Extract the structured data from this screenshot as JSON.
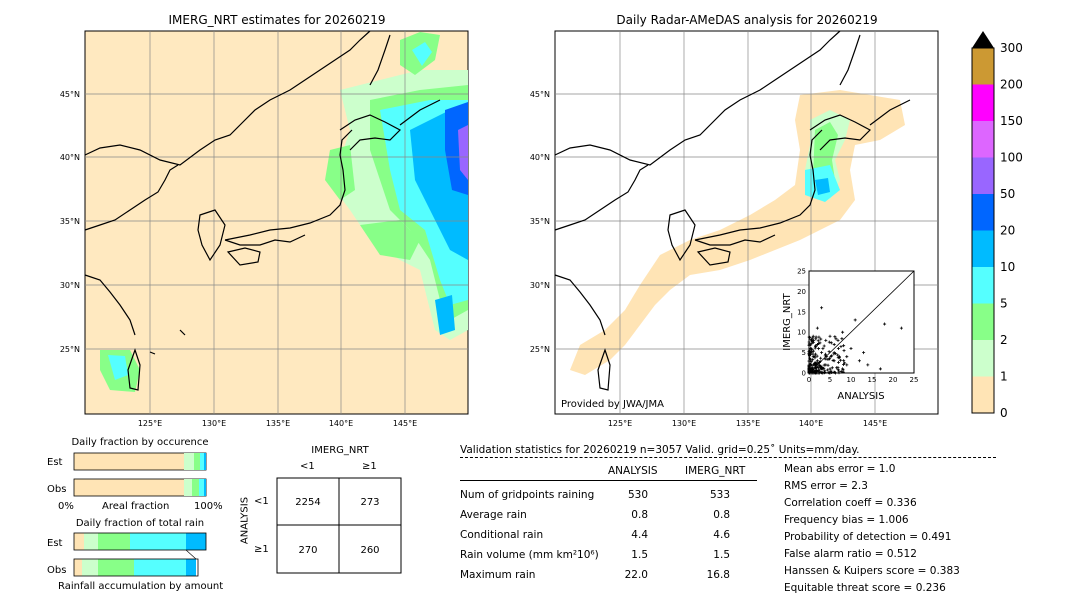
{
  "left_map": {
    "title": "IMERG_NRT estimates for 20260219",
    "lat_ticks": [
      "45°N",
      "40°N",
      "35°N",
      "30°N",
      "25°N"
    ],
    "lon_ticks": [
      "125°E",
      "130°E",
      "135°E",
      "140°E",
      "145°E"
    ]
  },
  "right_map": {
    "title": "Daily Radar-AMeDAS analysis for 20260219",
    "provider": "Provided by JWA/JMA",
    "lat_ticks": [
      "45°N",
      "40°N",
      "35°N",
      "30°N",
      "25°N"
    ],
    "lon_ticks": [
      "125°E",
      "130°E",
      "135°E",
      "140°E",
      "145°E"
    ]
  },
  "colorbar": {
    "labels": [
      "300",
      "200",
      "150",
      "100",
      "50",
      "20",
      "10",
      "5",
      "2",
      "1",
      "0"
    ],
    "colors": [
      "#cc9933",
      "#ff00ff",
      "#dd66ff",
      "#9966ff",
      "#0066ff",
      "#00bbff",
      "#55ffff",
      "#88ff88",
      "#ccffcc",
      "#ffe4b5"
    ]
  },
  "scatter": {
    "xlabel": "ANALYSIS",
    "ylabel": "IMERG_NRT",
    "ticks": [
      "0",
      "5",
      "10",
      "15",
      "20",
      "25"
    ]
  },
  "fraction_occurrence": {
    "title": "Daily fraction by occurence",
    "rows": [
      "Est",
      "Obs"
    ],
    "xlabel_left": "0%",
    "xlabel_mid": "Areal fraction",
    "xlabel_right": "100%"
  },
  "fraction_rain": {
    "title": "Daily fraction of total rain",
    "rows": [
      "Est",
      "Obs"
    ],
    "xlabel": "Rainfall accumulation by amount"
  },
  "contingency": {
    "title": "IMERG_NRT",
    "col_labels": [
      "<1",
      "≥1"
    ],
    "row_title": "ANALYSIS",
    "row_labels": [
      "<1",
      "≥1"
    ],
    "cells": [
      "2254",
      "273",
      "270",
      "260"
    ]
  },
  "validation": {
    "header": "Validation statistics for 20260219  n=3057 Valid. grid=0.25˚ Units=mm/day.",
    "col1": "ANALYSIS",
    "col2": "IMERG_NRT",
    "rows": [
      {
        "label": "Num of gridpoints raining",
        "a": "530",
        "b": "533"
      },
      {
        "label": "Average rain",
        "a": "0.8",
        "b": "0.8"
      },
      {
        "label": "Conditional rain",
        "a": "4.4",
        "b": "4.6"
      },
      {
        "label": "Rain volume (mm km²10⁶)",
        "a": "1.5",
        "b": "1.5"
      },
      {
        "label": "Maximum rain",
        "a": "22.0",
        "b": "16.8"
      }
    ],
    "scores": [
      "Mean abs error =    1.0",
      "RMS error =    2.3",
      "Correlation coeff =  0.336",
      "Frequency bias =  1.006",
      "Probability of detection =  0.491",
      "False alarm ratio =  0.512",
      "Hanssen & Kuipers score =  0.383",
      "Equitable threat score =  0.236"
    ]
  },
  "chart_data": [
    {
      "type": "heatmap",
      "title": "IMERG_NRT estimates for 20260219",
      "x_ticks": [
        "125°E",
        "130°E",
        "135°E",
        "140°E",
        "145°E"
      ],
      "y_ticks": [
        "45°N",
        "40°N",
        "35°N",
        "30°N",
        "25°N"
      ]
    },
    {
      "type": "heatmap",
      "title": "Daily Radar-AMeDAS analysis for 20260219",
      "x_ticks": [
        "125°E",
        "130°E",
        "135°E",
        "140°E",
        "145°E"
      ],
      "y_ticks": [
        "45°N",
        "40°N",
        "35°N",
        "30°N",
        "25°N"
      ]
    },
    {
      "type": "scatter",
      "xlabel": "ANALYSIS",
      "ylabel": "IMERG_NRT",
      "xlim": [
        0,
        25
      ],
      "ylim": [
        0,
        25
      ],
      "points": [
        [
          17,
          1
        ],
        [
          22,
          11
        ],
        [
          18,
          12
        ],
        [
          3,
          16
        ],
        [
          11,
          13
        ],
        [
          8,
          10
        ],
        [
          6,
          7
        ],
        [
          9,
          4
        ],
        [
          12,
          3
        ],
        [
          14,
          2
        ],
        [
          5,
          9
        ],
        [
          7,
          6
        ],
        [
          4,
          8
        ],
        [
          10,
          6
        ],
        [
          6,
          3
        ],
        [
          3,
          5
        ],
        [
          2,
          7
        ],
        [
          1,
          9
        ],
        [
          2,
          11
        ],
        [
          1,
          4
        ],
        [
          4,
          2
        ],
        [
          8,
          1
        ],
        [
          5,
          1
        ],
        [
          3,
          1
        ],
        [
          13,
          5
        ],
        [
          2,
          3
        ],
        [
          1,
          2
        ],
        [
          0.5,
          6
        ],
        [
          6,
          5
        ],
        [
          9,
          2
        ]
      ]
    },
    {
      "type": "table",
      "title": "IMERG_NRT",
      "rows": [
        "<1",
        "≥1"
      ],
      "cols": [
        "<1",
        "≥1"
      ],
      "values": [
        [
          2254,
          273
        ],
        [
          270,
          260
        ]
      ]
    }
  ]
}
